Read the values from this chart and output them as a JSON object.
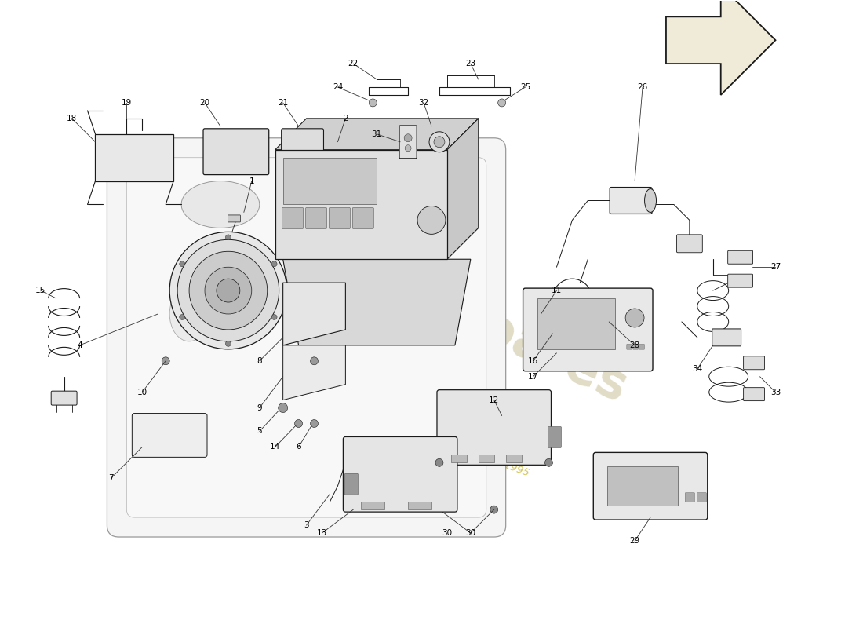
{
  "background_color": "#ffffff",
  "line_color": "#1a1a1a",
  "label_color": "#000000",
  "watermark1_color": "#ddd8c0",
  "watermark2_color": "#c8b830",
  "arrow_outline": "#1a1a1a",
  "arrow_fill": "#f0ead8",
  "yellow_highlight": "#d4b800"
}
